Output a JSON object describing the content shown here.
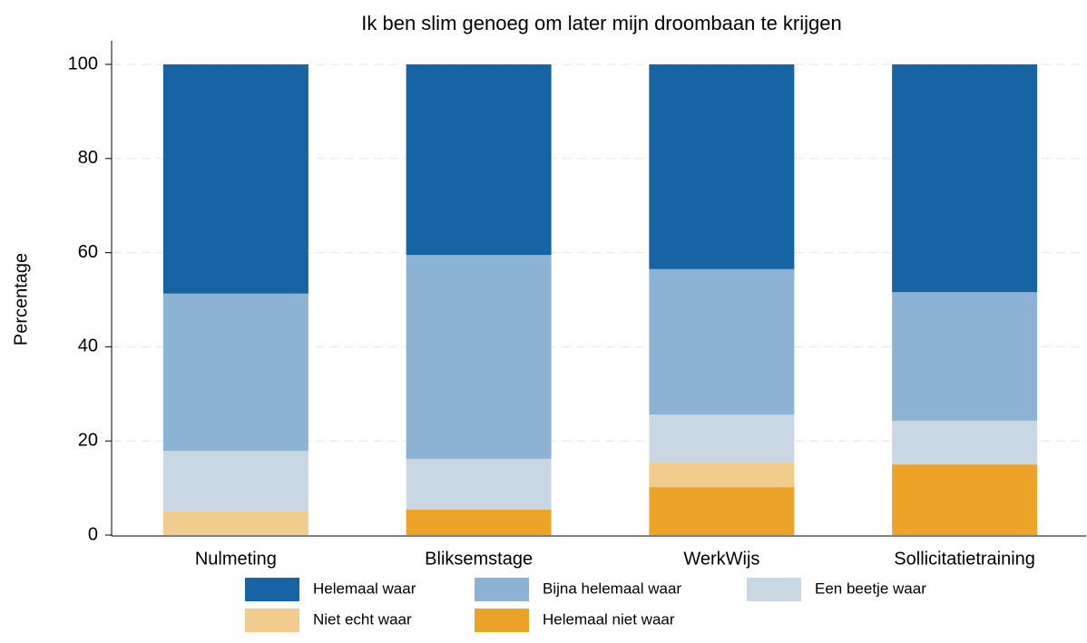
{
  "chart_data": {
    "type": "stacked_bar",
    "title": "Ik ben slim genoeg om later mijn droombaan te krijgen",
    "y_label": "Percentage",
    "categories": [
      "Nulmeting",
      "Bliksemstage",
      "WerkWijs",
      "Sollicitatietraining"
    ],
    "series": [
      {
        "name": "Helemaal waar",
        "color": "#1764a4",
        "values": [
          48.7,
          40.5,
          43.5,
          48.4
        ]
      },
      {
        "name": "Bijna helemaal waar",
        "color": "#8db3d4",
        "values": [
          33.4,
          43.3,
          30.9,
          27.3
        ]
      },
      {
        "name": "Een beetje waar",
        "color": "#c9d7e4",
        "values": [
          12.8,
          10.8,
          10.2,
          9.3
        ]
      },
      {
        "name": "Niet echt waar",
        "color": "#f2cc8c",
        "values": [
          5.1,
          0,
          5.2,
          0
        ]
      },
      {
        "name": "Helemaal niet waar",
        "color": "#eda228",
        "values": [
          0,
          5.4,
          10.2,
          15.0
        ]
      }
    ],
    "ylim": [
      0,
      100
    ],
    "yticks": [
      0,
      20,
      40,
      60,
      80,
      100
    ],
    "grid": true
  }
}
